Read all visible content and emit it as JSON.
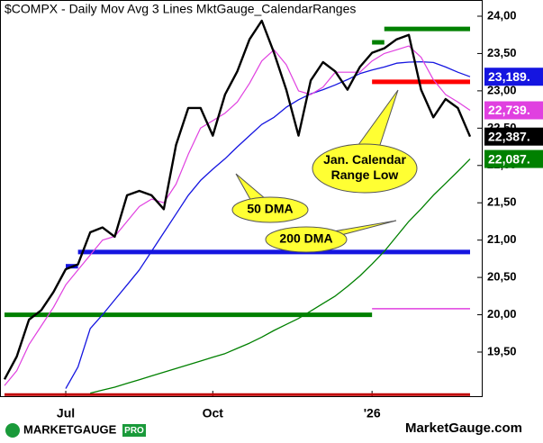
{
  "chart_data": {
    "type": "line",
    "title": "$COMPX - Daily  Mov Avg 3 Lines  MktGauge_CalendarRanges",
    "categories": [
      null,
      null,
      null,
      null,
      null,
      "Jul",
      null,
      null,
      null,
      null,
      null,
      null,
      null,
      null,
      null,
      null,
      null,
      "Oct",
      null,
      null,
      null,
      null,
      null,
      null,
      null,
      null,
      null,
      null,
      null,
      null,
      "'26",
      null,
      null,
      null,
      null,
      null,
      null,
      null,
      null
    ],
    "ylim": [
      18909,
      24217
    ],
    "yticks": [
      {
        "value": 19500,
        "label": "19,50"
      },
      {
        "value": 20000,
        "label": "20,00"
      },
      {
        "value": 20500,
        "label": "20,50"
      },
      {
        "value": 21000,
        "label": "21,00"
      },
      {
        "value": 21500,
        "label": "21,50"
      },
      {
        "value": 22000,
        "label": "22,00"
      },
      {
        "value": 22500,
        "label": "22,50"
      },
      {
        "value": 23000,
        "label": "23,00"
      },
      {
        "value": 23500,
        "label": "23,50"
      },
      {
        "value": 24000,
        "label": "24,00"
      }
    ],
    "series": [
      {
        "color": "#008000",
        "width": 1.3,
        "values": [
          null,
          null,
          null,
          null,
          null,
          null,
          null,
          18950,
          18990,
          19030,
          19080,
          19130,
          19180,
          19230,
          19280,
          19330,
          19380,
          19430,
          19480,
          19550,
          19620,
          19700,
          19790,
          19870,
          19950,
          20050,
          20150,
          20250,
          20380,
          20520,
          20680,
          20850,
          21050,
          21250,
          21420,
          21600,
          21760,
          21920,
          22087
        ],
        "value_labels": [
          null,
          null,
          null,
          null,
          null,
          null,
          null,
          null,
          null,
          null,
          null,
          null,
          null,
          null,
          null,
          null,
          null,
          null,
          null,
          null,
          null,
          null,
          null,
          null,
          null,
          null,
          null,
          null,
          null,
          null,
          null,
          null,
          null,
          null,
          null,
          null,
          null,
          null,
          "22,087."
        ],
        "label_text_color": "#ffffff"
      },
      {
        "color": "#1515e0",
        "width": 1.3,
        "values": [
          null,
          null,
          null,
          null,
          null,
          19010,
          19300,
          19815,
          20000,
          20200,
          20400,
          20600,
          20850,
          21100,
          21350,
          21600,
          21800,
          21950,
          22090,
          22250,
          22400,
          22550,
          22645,
          22780,
          22880,
          22960,
          23015,
          23080,
          23150,
          23230,
          23280,
          23320,
          23370,
          23385,
          23390,
          23380,
          23320,
          23250,
          23189
        ],
        "value_labels": [
          null,
          null,
          null,
          null,
          null,
          null,
          null,
          null,
          null,
          null,
          null,
          null,
          null,
          null,
          null,
          null,
          null,
          null,
          null,
          null,
          null,
          null,
          null,
          null,
          null,
          null,
          null,
          null,
          null,
          null,
          null,
          null,
          null,
          null,
          null,
          null,
          null,
          null,
          "23,189."
        ],
        "label_text_color": "#ffffff"
      },
      {
        "color": "#e040e0",
        "width": 1.2,
        "values": [
          19050,
          19250,
          19600,
          19850,
          20100,
          20400,
          20600,
          20800,
          21000,
          21050,
          21250,
          21450,
          21550,
          21500,
          21750,
          22150,
          22500,
          22600,
          22700,
          22850,
          23100,
          23400,
          23550,
          23350,
          23000,
          22950,
          23050,
          23250,
          23250,
          23250,
          23400,
          23500,
          23550,
          23600,
          23450,
          23150,
          22950,
          22850,
          22739
        ],
        "value_labels": [
          null,
          null,
          null,
          null,
          null,
          null,
          null,
          null,
          null,
          null,
          null,
          null,
          null,
          null,
          null,
          null,
          null,
          null,
          null,
          null,
          null,
          null,
          null,
          null,
          null,
          null,
          null,
          null,
          null,
          null,
          null,
          null,
          null,
          null,
          null,
          null,
          null,
          null,
          "22,739."
        ],
        "label_text_color": "#ffffff"
      },
      {
        "color": "#000000",
        "width": 2.4,
        "values": [
          19135,
          19440,
          19935,
          20060,
          20305,
          20610,
          20675,
          21105,
          21170,
          21045,
          21600,
          21660,
          21600,
          21415,
          22275,
          22770,
          22770,
          22400,
          22950,
          23260,
          23690,
          23940,
          23510,
          23015,
          22400,
          23140,
          23385,
          23260,
          23015,
          23320,
          23510,
          23570,
          23690,
          23750,
          23015,
          22645,
          22890,
          22770,
          22387
        ],
        "value_labels": [
          null,
          null,
          null,
          null,
          null,
          null,
          null,
          null,
          null,
          null,
          null,
          null,
          null,
          null,
          null,
          null,
          null,
          null,
          null,
          null,
          null,
          null,
          null,
          null,
          null,
          null,
          null,
          null,
          null,
          null,
          null,
          null,
          null,
          null,
          null,
          null,
          null,
          null,
          "22,387."
        ],
        "label_text_color": "#ffffff"
      }
    ],
    "ranges": [
      {
        "value": 18930,
        "start": 0,
        "end": 38,
        "color": "#c00000",
        "width": 3
      },
      {
        "value": 20000,
        "start": 0,
        "end": 30,
        "color": "#008000",
        "width": 5
      },
      {
        "value": 20650,
        "start": 5,
        "end": 6,
        "color": "#1515e0",
        "width": 5
      },
      {
        "value": 20840,
        "start": 6,
        "end": 38,
        "color": "#1515e0",
        "width": 5
      },
      {
        "value": 20080,
        "start": 30,
        "end": 38,
        "color": "#e040e0",
        "width": 1.5
      },
      {
        "value": 23120,
        "start": 30,
        "end": 38,
        "color": "#ff0000",
        "width": 5
      },
      {
        "value": 23650,
        "start": 30,
        "end": 31,
        "color": "#008000",
        "width": 5
      },
      {
        "value": 23830,
        "start": 31,
        "end": 38,
        "color": "#008000",
        "width": 5
      }
    ],
    "annotations": [
      {
        "lines": [
          "Jan. Calendar",
          "Range Low"
        ]
      },
      {
        "lines": [
          "50 DMA"
        ]
      },
      {
        "lines": [
          "200 DMA"
        ]
      }
    ],
    "logo": {
      "brand": "MARKETGAUGE",
      "badge": "PRO"
    },
    "footer": "MarketGauge.com"
  }
}
